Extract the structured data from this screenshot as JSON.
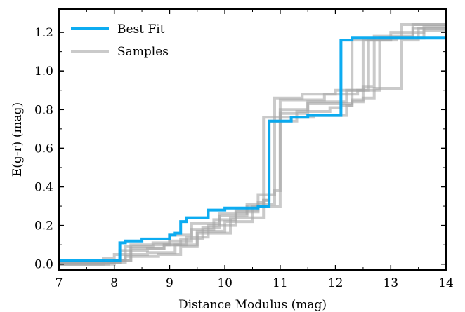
{
  "chart_data": {
    "type": "line",
    "xlabel": "Distance Modulus (mag)",
    "ylabel": "E(g-r) (mag)",
    "xlim": [
      7,
      14
    ],
    "ylim": [
      -0.03,
      1.32
    ],
    "xticks": [
      "7",
      "8",
      "9",
      "10",
      "11",
      "12",
      "13",
      "14"
    ],
    "yticks": [
      "0.0",
      "0.2",
      "0.4",
      "0.6",
      "0.8",
      "1.0",
      "1.2"
    ],
    "grid": false,
    "legend_placement": "top-left",
    "legend": [
      {
        "label": "Best Fit",
        "color": "#00a8f0"
      },
      {
        "label": "Samples",
        "color": "#a6a6a6"
      }
    ],
    "series": [
      {
        "name": "Samples",
        "color": "#a6a6a6",
        "lines": [
          {
            "x": [
              7.0,
              7.9,
              8.1,
              8.6,
              8.9,
              9.2,
              9.6,
              9.9,
              10.4,
              10.7,
              10.8,
              11.0,
              11.6,
              12.2,
              12.3,
              12.5,
              13.1,
              13.2,
              14.0
            ],
            "y": [
              0.01,
              0.01,
              0.07,
              0.08,
              0.1,
              0.13,
              0.19,
              0.25,
              0.3,
              0.33,
              0.74,
              0.76,
              0.77,
              0.82,
              0.85,
              1.16,
              1.17,
              1.24,
              1.25
            ]
          },
          {
            "x": [
              7.0,
              8.0,
              8.2,
              8.7,
              9.0,
              9.4,
              9.8,
              10.2,
              10.6,
              10.8,
              10.9,
              11.4,
              12.0,
              12.6,
              12.7,
              13.4,
              14.0
            ],
            "y": [
              0.0,
              0.02,
              0.09,
              0.1,
              0.12,
              0.18,
              0.23,
              0.28,
              0.36,
              0.36,
              0.86,
              0.88,
              0.9,
              0.92,
              1.18,
              1.24,
              1.26
            ]
          },
          {
            "x": [
              7.0,
              7.8,
              8.0,
              8.6,
              9.1,
              9.5,
              10.1,
              10.7,
              10.9,
              11.0,
              11.5,
              12.3,
              12.5,
              12.7,
              12.8,
              13.6,
              14.0
            ],
            "y": [
              0.0,
              0.03,
              0.05,
              0.06,
              0.1,
              0.16,
              0.24,
              0.3,
              0.3,
              0.78,
              0.83,
              0.84,
              0.86,
              0.9,
              1.17,
              1.21,
              1.22
            ]
          },
          {
            "x": [
              7.0,
              8.1,
              8.3,
              8.9,
              9.3,
              9.7,
              10.2,
              10.6,
              10.7,
              11.0,
              11.5,
              12.2,
              12.5,
              12.6,
              13.0,
              13.4,
              14.0
            ],
            "y": [
              0.01,
              0.02,
              0.08,
              0.1,
              0.14,
              0.2,
              0.27,
              0.32,
              0.76,
              0.8,
              0.84,
              0.9,
              0.92,
              1.16,
              1.17,
              1.22,
              1.24
            ]
          },
          {
            "x": [
              7.0,
              7.9,
              8.2,
              8.8,
              9.2,
              9.5,
              10.0,
              10.5,
              10.7,
              10.8,
              11.3,
              11.9,
              12.1,
              12.3,
              13.0,
              13.6,
              14.0
            ],
            "y": [
              0.0,
              0.01,
              0.04,
              0.05,
              0.09,
              0.17,
              0.22,
              0.3,
              0.33,
              0.74,
              0.79,
              0.81,
              0.82,
              1.16,
              1.2,
              1.23,
              1.23
            ]
          },
          {
            "x": [
              7.0,
              8.0,
              8.3,
              8.7,
              9.0,
              9.4,
              9.9,
              10.4,
              10.9,
              11.0,
              11.8,
              12.4,
              12.7,
              13.2,
              13.5,
              14.0
            ],
            "y": [
              0.01,
              0.02,
              0.1,
              0.11,
              0.15,
              0.21,
              0.26,
              0.31,
              0.38,
              0.85,
              0.88,
              0.9,
              0.91,
              1.16,
              1.22,
              1.24
            ]
          }
        ]
      },
      {
        "name": "Best Fit",
        "color": "#00a8f0",
        "x": [
          7.0,
          8.0,
          8.1,
          8.2,
          8.4,
          8.5,
          8.7,
          8.8,
          9.0,
          9.1,
          9.2,
          9.3,
          9.6,
          9.7,
          9.9,
          10.0,
          10.5,
          10.6,
          10.7,
          10.8,
          10.9,
          11.2,
          11.5,
          12.0,
          12.1,
          12.3,
          12.4,
          14.0
        ],
        "y": [
          0.02,
          0.02,
          0.11,
          0.12,
          0.12,
          0.13,
          0.13,
          0.13,
          0.15,
          0.16,
          0.22,
          0.24,
          0.24,
          0.28,
          0.28,
          0.29,
          0.29,
          0.3,
          0.3,
          0.74,
          0.74,
          0.76,
          0.77,
          0.77,
          1.16,
          1.17,
          1.17,
          1.17
        ]
      }
    ]
  }
}
